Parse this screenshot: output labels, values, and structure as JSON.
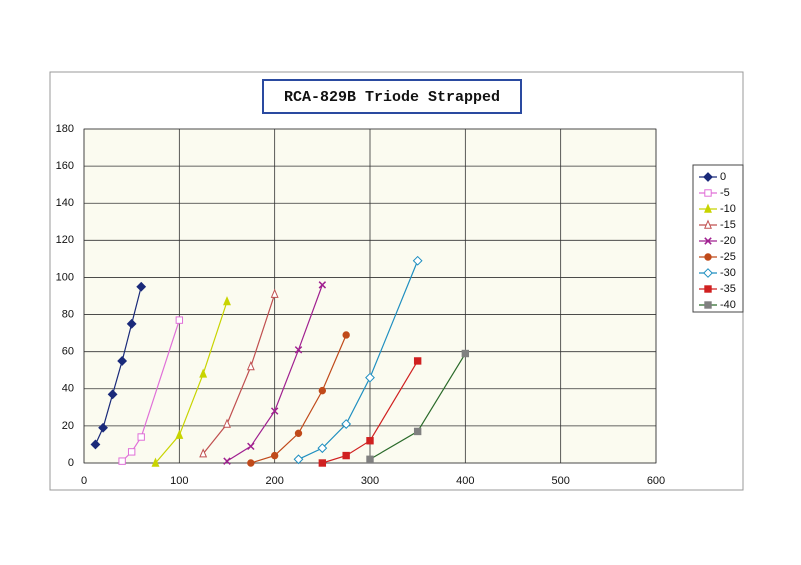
{
  "chart_data": {
    "type": "line",
    "title": "RCA-829B Triode Strapped",
    "xlim": [
      0,
      600
    ],
    "xticks": [
      0,
      100,
      200,
      300,
      400,
      500,
      600
    ],
    "ylim": [
      0,
      180
    ],
    "yticks": [
      0,
      20,
      40,
      60,
      80,
      100,
      120,
      140,
      160,
      180
    ],
    "grid": true,
    "legend": "right",
    "series": [
      {
        "name": "0",
        "color": "#1a2a7a",
        "marker": "diamond",
        "x": [
          12,
          20,
          30,
          40,
          50,
          60
        ],
        "values": [
          10,
          19,
          37,
          55,
          75,
          95
        ]
      },
      {
        "name": "-5",
        "color": "#e070d8",
        "marker": "square-open",
        "x": [
          40,
          50,
          60,
          100
        ],
        "values": [
          1,
          6,
          14,
          77
        ]
      },
      {
        "name": "-10",
        "color": "#c8d400",
        "marker": "triangle",
        "x": [
          75,
          100,
          125,
          150
        ],
        "values": [
          0,
          15,
          48,
          87
        ]
      },
      {
        "name": "-15",
        "color": "#c05050",
        "marker": "triangle-open",
        "x": [
          125,
          150,
          175,
          200
        ],
        "values": [
          5,
          21,
          52,
          91
        ]
      },
      {
        "name": "-20",
        "color": "#a02090",
        "marker": "x",
        "x": [
          150,
          175,
          200,
          225,
          250
        ],
        "values": [
          1,
          9,
          28,
          61,
          96
        ]
      },
      {
        "name": "-25",
        "color": "#c04a1a",
        "marker": "circle",
        "x": [
          175,
          200,
          225,
          250,
          275
        ],
        "values": [
          0,
          4,
          16,
          39,
          69
        ]
      },
      {
        "name": "-30",
        "color": "#1f8fc0",
        "marker": "diamond-open",
        "x": [
          225,
          250,
          275,
          300,
          350
        ],
        "values": [
          2,
          8,
          21,
          46,
          109
        ]
      },
      {
        "name": "-35",
        "color": "#d02020",
        "marker": "square",
        "x": [
          250,
          275,
          300,
          350
        ],
        "values": [
          0,
          4,
          12,
          55
        ]
      },
      {
        "name": "-40",
        "color": "#2a6a2a",
        "marker": "square-gray",
        "x": [
          300,
          350,
          400
        ],
        "values": [
          2,
          17,
          59
        ]
      }
    ]
  }
}
